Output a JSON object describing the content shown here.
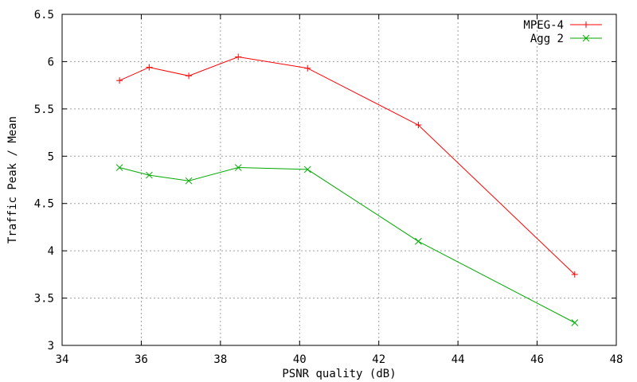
{
  "chart_data": {
    "type": "line",
    "title": "",
    "xlabel": "PSNR quality (dB)",
    "ylabel": "Traffic Peak / Mean",
    "xlim": [
      34,
      48
    ],
    "ylim": [
      3,
      6.5
    ],
    "xticks": [
      34,
      36,
      38,
      40,
      42,
      44,
      46,
      48
    ],
    "yticks": [
      3,
      3.5,
      4,
      4.5,
      5,
      5.5,
      6,
      6.5
    ],
    "xtick_labels": [
      "34",
      "36",
      "38",
      "40",
      "42",
      "44",
      "46",
      "48"
    ],
    "ytick_labels": [
      "3",
      "3.5",
      "4",
      "4.5",
      "5",
      "5.5",
      "6",
      "6.5"
    ],
    "grid": true,
    "legend_position": "top-right",
    "series": [
      {
        "name": "MPEG-4",
        "color": "#ff0000",
        "marker": "plus",
        "x": [
          35.45,
          36.2,
          37.2,
          38.45,
          40.2,
          43.0,
          46.95
        ],
        "y": [
          5.8,
          5.94,
          5.85,
          6.05,
          5.93,
          5.33,
          3.75
        ]
      },
      {
        "name": "Agg 2",
        "color": "#00aa00",
        "marker": "cross",
        "x": [
          35.45,
          36.2,
          37.2,
          38.45,
          40.2,
          43.0,
          46.95
        ],
        "y": [
          4.88,
          4.8,
          4.74,
          4.88,
          4.86,
          4.1,
          3.24
        ]
      }
    ]
  }
}
